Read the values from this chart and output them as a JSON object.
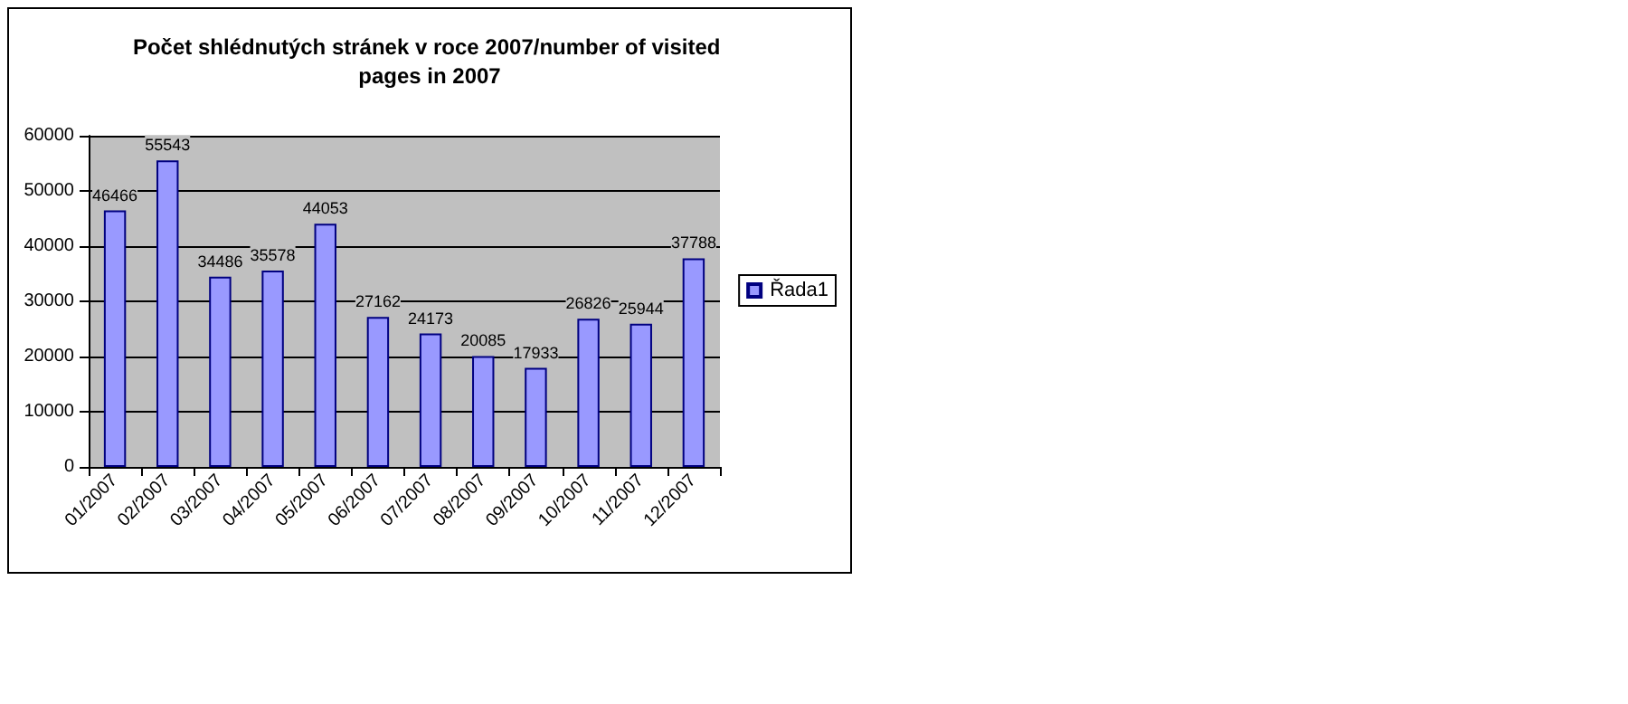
{
  "chart_data": {
    "type": "bar",
    "title": "Počet shlédnutých stránek v roce 2007/number of visited pages in 2007",
    "categories": [
      "01/2007",
      "02/2007",
      "03/2007",
      "04/2007",
      "05/2007",
      "06/2007",
      "07/2007",
      "08/2007",
      "09/2007",
      "10/2007",
      "11/2007",
      "12/2007"
    ],
    "series": [
      {
        "name": "Řada1",
        "color": "#9999ff",
        "values": [
          46466,
          55543,
          34486,
          35578,
          44053,
          27162,
          24173,
          20085,
          17933,
          26826,
          25944,
          37788
        ]
      }
    ],
    "ylim": [
      0,
      60000
    ],
    "yticks": [
      0,
      10000,
      20000,
      30000,
      40000,
      50000,
      60000
    ],
    "grid": "y",
    "legend": "right",
    "data_labels": true
  }
}
